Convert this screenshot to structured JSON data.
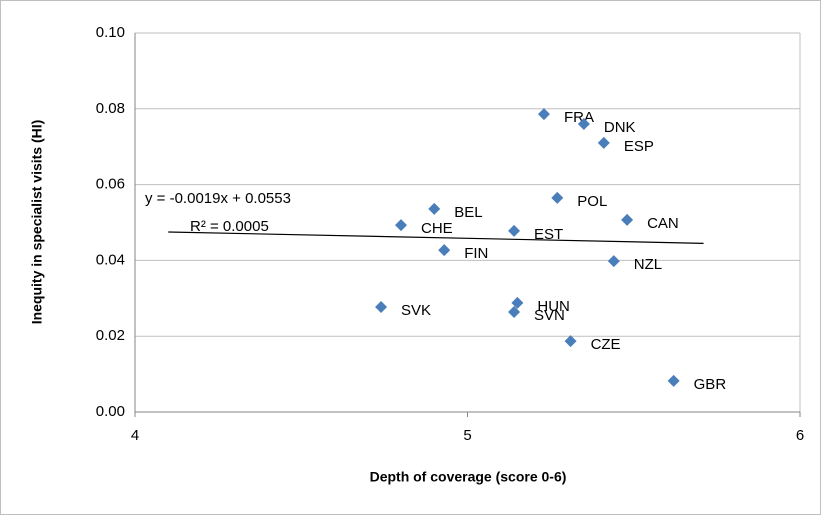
{
  "chart_data": {
    "type": "scatter",
    "x_label": "Depth of  coverage  (score 0-6)",
    "y_label": "Inequity in specialist  visits (HI)",
    "labels": [
      "FRA",
      "DNK",
      "ESP",
      "POL",
      "BEL",
      "CHE",
      "CAN",
      "EST",
      "FIN",
      "NZL",
      "SVK",
      "HUN",
      "SVN",
      "CZE",
      "GBR"
    ],
    "x": [
      5.23,
      5.35,
      5.41,
      5.27,
      4.9,
      4.8,
      5.48,
      5.14,
      4.93,
      5.44,
      4.74,
      5.15,
      5.14,
      5.31,
      5.62
    ],
    "values": [
      0.0786,
      0.076,
      0.071,
      0.0565,
      0.0536,
      0.0493,
      0.0507,
      0.0478,
      0.0427,
      0.0398,
      0.0277,
      0.0288,
      0.0264,
      0.0187,
      0.0082
    ],
    "color": "#4a7ebb",
    "xlim": [
      4,
      6
    ],
    "ylim": [
      0,
      0.1
    ],
    "xticks": [
      4,
      5,
      6
    ],
    "yticks": [
      {
        "value": 0,
        "label": "0.00"
      },
      {
        "value": 0.02,
        "label": "0.02"
      },
      {
        "value": 0.04,
        "label": "0.04"
      },
      {
        "value": 0.06,
        "label": "0.06"
      },
      {
        "value": 0.08,
        "label": "0.08"
      },
      {
        "value": 0.1,
        "label": "0.10"
      }
    ],
    "grid": true,
    "trendline": {
      "x": [
        4.1,
        5.71
      ],
      "values": [
        0.0475,
        0.0445
      ],
      "color": "#000000"
    },
    "annotations": [
      "y = -0.0019x + 0.0553",
      "R² = 0.0005"
    ]
  }
}
